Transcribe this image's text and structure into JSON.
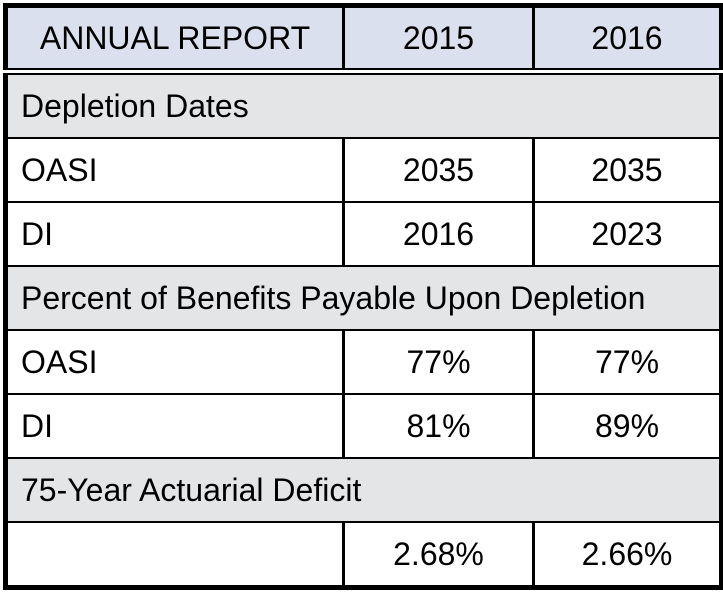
{
  "chart_data": {
    "type": "table",
    "title": "ANNUAL REPORT",
    "columns": [
      "ANNUAL REPORT",
      "2015",
      "2016"
    ],
    "sections": [
      {
        "header": "Depletion Dates",
        "rows": [
          [
            "OASI",
            "2035",
            "2035"
          ],
          [
            "DI",
            "2016",
            "2023"
          ]
        ]
      },
      {
        "header": "Percent of Benefits Payable Upon Depletion",
        "rows": [
          [
            "OASI",
            "77%",
            "77%"
          ],
          [
            "DI",
            "81%",
            "89%"
          ]
        ]
      },
      {
        "header": "75-Year Actuarial Deficit",
        "rows": [
          [
            "",
            "2.68%",
            "2.66%"
          ]
        ]
      }
    ]
  },
  "table": {
    "header": {
      "title": "ANNUAL REPORT",
      "year1": "2015",
      "year2": "2016"
    },
    "sections": [
      {
        "title": "Depletion Dates",
        "rows": [
          {
            "label": "OASI",
            "y2015": "2035",
            "y2016": "2035"
          },
          {
            "label": "DI",
            "y2015": "2016",
            "y2016": "2023"
          }
        ]
      },
      {
        "title": "Percent of Benefits Payable Upon Depletion",
        "rows": [
          {
            "label": "OASI",
            "y2015": "77%",
            "y2016": "77%"
          },
          {
            "label": "DI",
            "y2015": "81%",
            "y2016": "89%"
          }
        ]
      },
      {
        "title": "75-Year Actuarial Deficit",
        "rows": [
          {
            "label": "",
            "y2015": "2.68%",
            "y2016": "2.66%"
          }
        ]
      }
    ],
    "colors": {
      "header_bg": "#dbe0ee",
      "section_bg": "#e4e5e7",
      "row_bg": "#ffffff",
      "border": "#000000",
      "text": "#000000"
    }
  }
}
